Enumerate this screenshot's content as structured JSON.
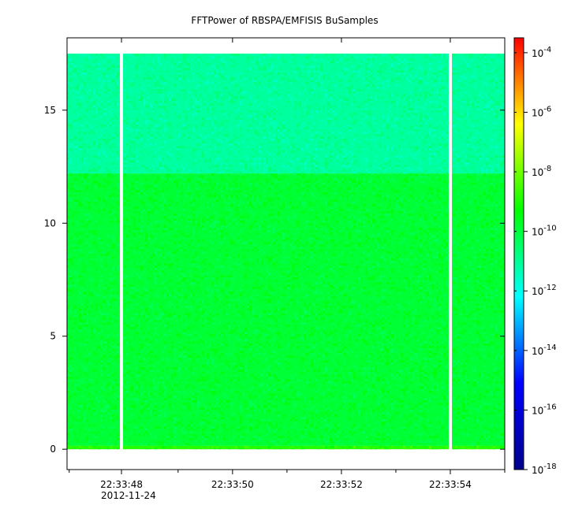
{
  "chart_data": {
    "type": "heatmap",
    "title": "FFTPower of RBSPA/EMFISIS  BuSamples",
    "xlabel": "",
    "ylabel": "",
    "x_ticks": [
      {
        "t": 47.96,
        "label": "22:33:48",
        "sublabel": "2012-11-24"
      },
      {
        "t": 50.0,
        "label": "22:33:50"
      },
      {
        "t": 52.0,
        "label": "22:33:52"
      },
      {
        "t": 54.0,
        "label": "22:33:54"
      }
    ],
    "x_minor_ticks": [
      47.0,
      49.0,
      51.0,
      53.0,
      55.0
    ],
    "xlim": [
      46.96,
      55.0
    ],
    "y_ticks": [
      0,
      5,
      10,
      15
    ],
    "ylim": [
      -0.9,
      18.2
    ],
    "data_extent": {
      "t_start": 46.96,
      "t_end": 55.0,
      "y_min": 0.0,
      "y_max": 17.5
    },
    "gaps": [
      47.96,
      54.0
    ],
    "bands": [
      {
        "y_from": 0.0,
        "y_to": 0.15,
        "log10_power": -8.9
      },
      {
        "y_from": 0.15,
        "y_to": 12.2,
        "log10_power": -9.9
      },
      {
        "y_from": 12.2,
        "y_to": 17.5,
        "log10_power": -11.1
      }
    ],
    "colorbar": {
      "scale": "log",
      "range": [
        -18,
        -3.5
      ],
      "ticks": [
        {
          "exp": -4,
          "base": "10",
          "power": "-4"
        },
        {
          "exp": -6,
          "base": "10",
          "power": "-6"
        },
        {
          "exp": -8,
          "base": "10",
          "power": "-8"
        },
        {
          "exp": -10,
          "base": "10",
          "power": "-10"
        },
        {
          "exp": -12,
          "base": "10",
          "power": "-12"
        },
        {
          "exp": -14,
          "base": "10",
          "power": "-14"
        },
        {
          "exp": -16,
          "base": "10",
          "power": "-16"
        },
        {
          "exp": -18,
          "base": "10",
          "power": "-18"
        }
      ]
    },
    "colormap": [
      "#00008b",
      "#0000ff",
      "#00ffff",
      "#00ff00",
      "#ffff00",
      "#ff0000"
    ]
  }
}
